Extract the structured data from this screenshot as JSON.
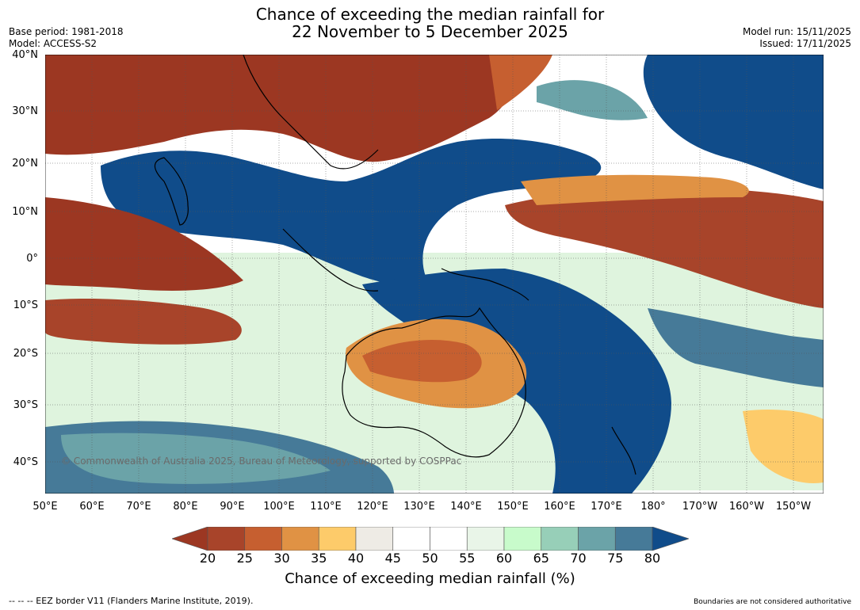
{
  "header": {
    "title_line1": "Chance of exceeding the median rainfall for",
    "title_line2": "22 November to 5 December 2025",
    "base_period": "Base period: 1981-2018",
    "model": "Model: ACCESS-S2",
    "model_run": "Model run: 15/11/2025",
    "issued": "Issued: 17/11/2025"
  },
  "map": {
    "copyright": "© Commonwealth of Australia 2025, Bureau of Meteorology, supported by COSPPac",
    "lat_labels": [
      "40°N",
      "30°N",
      "20°N",
      "10°N",
      "0°",
      "10°S",
      "20°S",
      "30°S",
      "40°S"
    ],
    "lon_labels": [
      "50°E",
      "60°E",
      "70°E",
      "80°E",
      "90°E",
      "100°E",
      "110°E",
      "120°E",
      "130°E",
      "140°E",
      "150°E",
      "160°E",
      "170°E",
      "180°",
      "170°W",
      "160°W",
      "150°W"
    ]
  },
  "colorbar": {
    "ticks": [
      "20",
      "25",
      "30",
      "35",
      "40",
      "45",
      "50",
      "55",
      "60",
      "65",
      "70",
      "75",
      "80"
    ],
    "colors": [
      "#9c3722",
      "#a8442a",
      "#c65f30",
      "#e09244",
      "#fdcb6a",
      "#eeebe5",
      "#ffffff",
      "#ffffff",
      "#e9f5e8",
      "#c8fbcb",
      "#97cfb8",
      "#6ba3a8",
      "#467a98",
      "#104c8a"
    ],
    "label": "Chance of exceeding median rainfall (%)"
  },
  "footer": {
    "eez": "--  --  -- EEZ border V11 (Flanders Marine Institute, 2019).",
    "disclaimer": "Boundaries are not considered authoritative"
  }
}
